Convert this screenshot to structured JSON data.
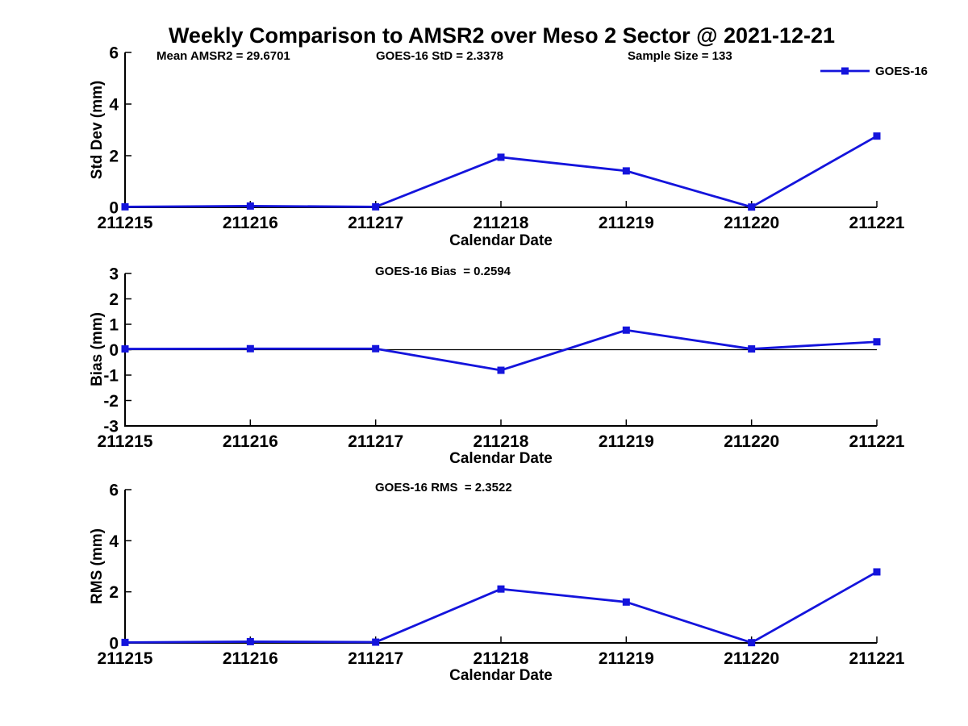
{
  "title": "Weekly Comparison to AMSR2 over Meso 2 Sector @ 2021-12-21",
  "header_annotations": {
    "mean_amsr2": "Mean AMSR2 = 29.6701",
    "goes16_std": "GOES-16 StD = 2.3378",
    "sample_size": "Sample Size = 133"
  },
  "legend": {
    "label": "GOES-16",
    "position": "top-right"
  },
  "colors": {
    "line": "#1414dc",
    "axis": "#000000",
    "background": "#ffffff"
  },
  "chart_data": [
    {
      "type": "line",
      "title": "",
      "xlabel": "Calendar Date",
      "ylabel": "Std Dev (mm)",
      "categories": [
        "211215",
        "211216",
        "211217",
        "211218",
        "211219",
        "211220",
        "211221"
      ],
      "series": [
        {
          "name": "GOES-16",
          "values": [
            0.02,
            0.05,
            0.02,
            1.94,
            1.41,
            0.01,
            2.76
          ]
        }
      ],
      "ylim": [
        0,
        6
      ],
      "yticks": [
        0,
        2,
        4,
        6
      ],
      "zero_line": false,
      "grid": false,
      "annotation": ""
    },
    {
      "type": "line",
      "title": "",
      "xlabel": "Calendar Date",
      "ylabel": "Bias (mm)",
      "categories": [
        "211215",
        "211216",
        "211217",
        "211218",
        "211219",
        "211220",
        "211221"
      ],
      "series": [
        {
          "name": "GOES-16",
          "values": [
            0.03,
            0.04,
            0.04,
            -0.81,
            0.77,
            0.03,
            0.31
          ]
        }
      ],
      "ylim": [
        -3,
        3
      ],
      "yticks": [
        -3,
        -2,
        -1,
        0,
        1,
        2,
        3
      ],
      "zero_line": true,
      "grid": false,
      "annotation": "GOES-16 Bias  = 0.2594"
    },
    {
      "type": "line",
      "title": "",
      "xlabel": "Calendar Date",
      "ylabel": "RMS (mm)",
      "categories": [
        "211215",
        "211216",
        "211217",
        "211218",
        "211219",
        "211220",
        "211221"
      ],
      "series": [
        {
          "name": "GOES-16",
          "values": [
            0.02,
            0.05,
            0.03,
            2.11,
            1.6,
            0.01,
            2.78
          ]
        }
      ],
      "ylim": [
        0,
        6
      ],
      "yticks": [
        0,
        2,
        4,
        6
      ],
      "zero_line": false,
      "grid": false,
      "annotation": "GOES-16 RMS  = 2.3522"
    }
  ]
}
